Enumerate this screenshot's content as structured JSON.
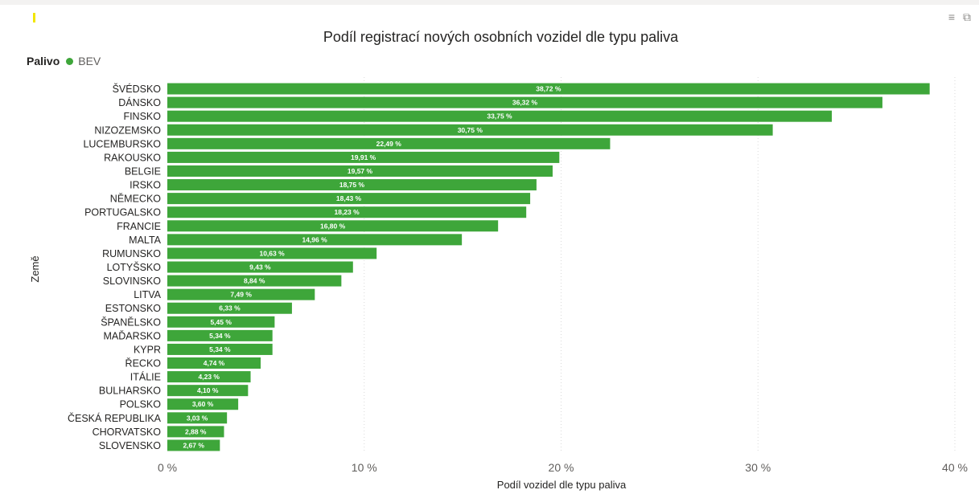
{
  "visual_header": {
    "filter_icon": "filter-icon",
    "focus_icon": "focus-mode-icon"
  },
  "colors": {
    "bar": "#3ea63a",
    "gridline": "#d9d9d9"
  },
  "chart_data": {
    "type": "bar",
    "orientation": "horizontal",
    "title": "Podíl registrací nových osobních vozidel dle typu paliva",
    "xlabel": "Podíl vozidel dle typu paliva",
    "ylabel": "Země",
    "legend": {
      "title": "Palivo",
      "placement": "top-left",
      "entries": [
        "BEV"
      ]
    },
    "xlim": [
      0,
      40
    ],
    "x_ticks": [
      0,
      10,
      20,
      30,
      40
    ],
    "x_tick_labels": [
      "0 %",
      "10 %",
      "20 %",
      "30 %",
      "40 %"
    ],
    "grid": true,
    "categories": [
      "ŠVÉDSKO",
      "DÁNSKO",
      "FINSKO",
      "NIZOZEMSKO",
      "LUCEMBURSKO",
      "RAKOUSKO",
      "BELGIE",
      "IRSKO",
      "NĚMECKO",
      "PORTUGALSKO",
      "FRANCIE",
      "MALTA",
      "RUMUNSKO",
      "LOTYŠSKO",
      "SLOVINSKO",
      "LITVA",
      "ESTONSKO",
      "ŠPANĚLSKO",
      "MAĎARSKO",
      "KYPR",
      "ŘECKO",
      "ITÁLIE",
      "BULHARSKO",
      "POLSKO",
      "ČESKÁ REPUBLIKA",
      "CHORVATSKO",
      "SLOVENSKO"
    ],
    "series": [
      {
        "name": "BEV",
        "values": [
          38.72,
          36.32,
          33.75,
          30.75,
          22.49,
          19.91,
          19.57,
          18.75,
          18.43,
          18.23,
          16.8,
          14.96,
          10.63,
          9.43,
          8.84,
          7.49,
          6.33,
          5.45,
          5.34,
          5.34,
          4.74,
          4.23,
          4.1,
          3.6,
          3.03,
          2.88,
          2.67
        ],
        "data_labels": [
          "38,72 %",
          "36,32 %",
          "33,75 %",
          "30,75 %",
          "22,49 %",
          "19,91 %",
          "19,57 %",
          "18,75 %",
          "18,43 %",
          "18,23 %",
          "16,80 %",
          "14,96 %",
          "10,63 %",
          "9,43 %",
          "8,84 %",
          "7,49 %",
          "6,33 %",
          "5,45 %",
          "5,34 %",
          "5,34 %",
          "4,74 %",
          "4,23 %",
          "4,10 %",
          "3,60 %",
          "3,03 %",
          "2,88 %",
          "2,67 %"
        ]
      }
    ]
  }
}
